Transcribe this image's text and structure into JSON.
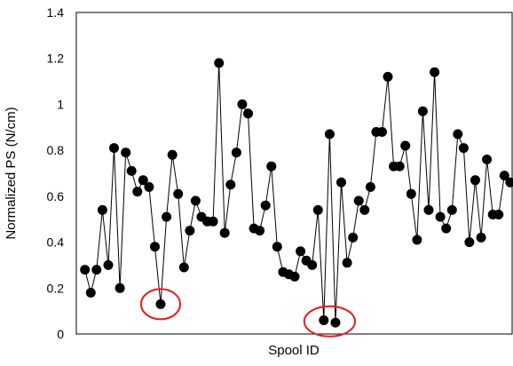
{
  "chart_data": {
    "type": "line",
    "title": "",
    "xlabel": "Spool ID",
    "ylabel": "Normalized PS (N/cm)",
    "ylim": [
      0,
      1.4
    ],
    "y_ticks": [
      "0",
      "0.2",
      "0.4",
      "0.6",
      "0.8",
      "1",
      "1.2",
      "1.4"
    ],
    "x_tick_labels": false,
    "grid": false,
    "legend": "none",
    "marker": "filled-circle",
    "line_color": "#000000",
    "marker_color": "#000000",
    "highlight_color": "#e8191c",
    "series": [
      {
        "values": [
          0.28,
          0.18,
          0.28,
          0.54,
          0.3,
          0.81,
          0.2,
          0.79,
          0.71,
          0.62,
          0.67,
          0.64,
          0.38,
          0.13,
          0.51,
          0.78,
          0.61,
          0.29,
          0.45,
          0.58,
          0.51,
          0.49,
          0.49,
          1.18,
          0.44,
          0.65,
          0.79,
          1.0,
          0.96,
          0.46,
          0.45,
          0.56,
          0.73,
          0.38,
          0.27,
          0.26,
          0.25,
          0.36,
          0.32,
          0.3,
          0.54,
          0.06,
          0.87,
          0.05,
          0.66,
          0.31,
          0.42,
          0.58,
          0.54,
          0.64,
          0.88,
          0.88,
          1.12,
          0.73,
          0.73,
          0.82,
          0.61,
          0.41,
          0.97,
          0.54,
          1.14,
          0.51,
          0.46,
          0.54,
          0.87,
          0.81,
          0.4,
          0.67,
          0.42,
          0.76,
          0.52,
          0.52,
          0.69,
          0.66
        ]
      }
    ],
    "highlighted_points": [
      13,
      41,
      43
    ]
  }
}
